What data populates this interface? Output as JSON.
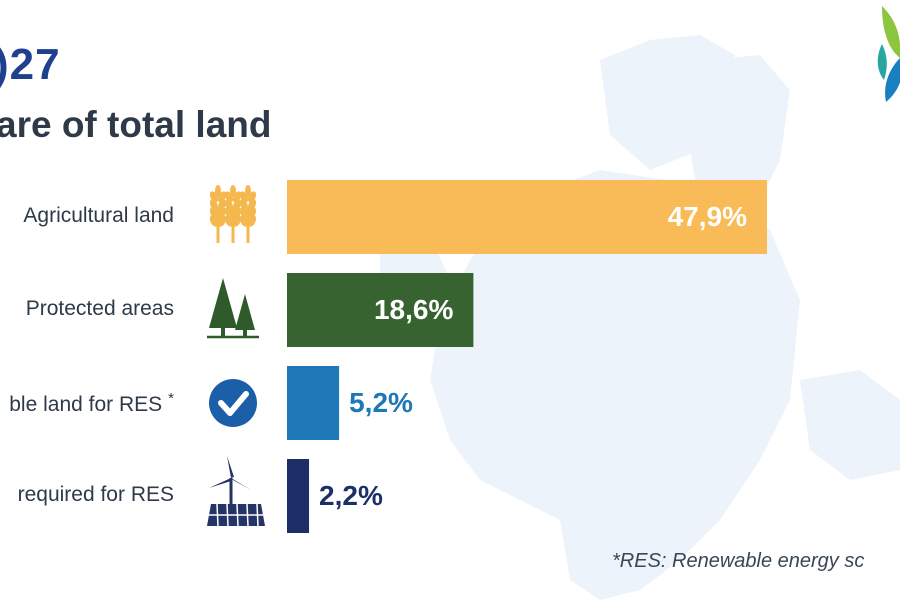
{
  "header": {
    "year_fragment": ")27",
    "subtitle_fragment": "are of total land"
  },
  "chart_data": {
    "type": "bar",
    "orientation": "horizontal",
    "categories": [
      "Agricultural land",
      "Protected areas",
      "ble land for RES",
      "required for RES"
    ],
    "values": [
      47.9,
      18.6,
      5.2,
      2.2
    ],
    "value_labels": [
      "47,9%",
      "18,6%",
      "5,2%",
      "2,2%"
    ],
    "unit": "%",
    "colors": [
      "#f9bb57",
      "#376331",
      "#1e77b6",
      "#1c2f66"
    ],
    "icons": [
      "wheat-icon",
      "pine-trees-icon",
      "checkmark-circle-icon",
      "wind-turbine-solar-panel-icon"
    ],
    "footnote_marker": "*",
    "legend": "none",
    "grid": false
  },
  "footnote": "*RES: Renewable energy sc",
  "colors": {
    "title_blue": "#1f3f8f",
    "text_dark": "#2f3a48",
    "map_tint": "#edf3fa"
  }
}
